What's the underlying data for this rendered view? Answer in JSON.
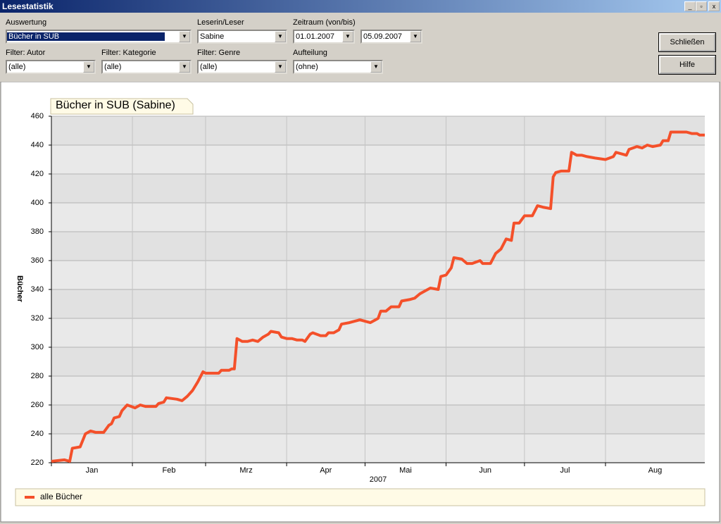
{
  "window": {
    "title": "Lesestatistik"
  },
  "form": {
    "auswertung": {
      "label": "Auswertung",
      "value": "Bücher in SUB"
    },
    "leser": {
      "label": "Leserin/Leser",
      "value": "Sabine"
    },
    "zeitraum": {
      "label": "Zeitraum (von/bis)",
      "from": "01.01.2007",
      "to": "05.09.2007"
    },
    "autor": {
      "label": "Filter: Autor",
      "value": "(alle)"
    },
    "kategorie": {
      "label": "Filter: Kategorie",
      "value": "(alle)"
    },
    "genre": {
      "label": "Filter: Genre",
      "value": "(alle)"
    },
    "aufteilung": {
      "label": "Aufteilung",
      "value": "(ohne)"
    }
  },
  "buttons": {
    "close": "Schließen",
    "help": "Hilfe"
  },
  "chart_data": {
    "type": "line",
    "title": "Bücher in SUB (Sabine)",
    "y_label": "Bücher",
    "x_label": "2007",
    "xlim": [
      0,
      250
    ],
    "xticks": [
      {
        "value": 0,
        "label": "Jan"
      },
      {
        "value": 31,
        "label": "Feb"
      },
      {
        "value": 59,
        "label": "Mrz"
      },
      {
        "value": 90,
        "label": "Apr"
      },
      {
        "value": 120,
        "label": "Mai"
      },
      {
        "value": 151,
        "label": "Jun"
      },
      {
        "value": 181,
        "label": "Jul"
      },
      {
        "value": 212,
        "label": "Aug"
      }
    ],
    "ylim": [
      220,
      460
    ],
    "yticks": [
      220,
      240,
      260,
      280,
      300,
      320,
      340,
      360,
      380,
      400,
      420,
      440,
      460
    ],
    "grid": true,
    "legend": "bottom",
    "x": [
      0,
      5,
      7,
      8,
      11,
      13,
      15,
      17,
      20,
      22,
      23,
      24,
      26,
      27,
      29,
      32,
      34,
      36,
      40,
      41,
      43,
      44,
      48,
      50,
      52,
      54,
      56,
      58,
      59,
      64,
      65,
      68,
      69,
      70,
      71,
      73,
      75,
      77,
      79,
      81,
      83,
      84,
      87,
      88,
      90,
      92,
      94,
      96,
      97,
      99,
      100,
      103,
      105,
      106,
      108,
      110,
      111,
      114,
      116,
      118,
      120,
      122,
      124,
      125,
      126,
      128,
      130,
      133,
      134,
      137,
      139,
      141,
      143,
      145,
      148,
      149,
      151,
      153,
      154,
      157,
      159,
      161,
      164,
      165,
      168,
      170,
      172,
      174,
      176,
      177,
      179,
      181,
      184,
      186,
      188,
      191,
      192,
      193,
      195,
      198,
      199,
      201,
      203,
      205,
      208,
      212,
      215,
      216,
      218,
      220,
      221,
      224,
      226,
      228,
      230,
      233,
      234,
      236,
      237,
      239,
      243,
      245,
      247,
      248,
      250
    ],
    "series": [
      {
        "name": "alle Bücher",
        "color": "#f4502a",
        "values": [
          221,
          222,
          221,
          230,
          231,
          240,
          242,
          241,
          241,
          246,
          247,
          251,
          252,
          256,
          260,
          258,
          260,
          259,
          259,
          261,
          262,
          265,
          264,
          263,
          266,
          270,
          276,
          283,
          282,
          282,
          284,
          284,
          285,
          285,
          306,
          304,
          304,
          305,
          304,
          307,
          309,
          311,
          310,
          307,
          306,
          306,
          305,
          305,
          304,
          309,
          310,
          308,
          308,
          310,
          310,
          312,
          316,
          317,
          318,
          319,
          318,
          317,
          319,
          320,
          325,
          325,
          328,
          328,
          332,
          333,
          334,
          337,
          339,
          341,
          340,
          349,
          350,
          355,
          362,
          361,
          358,
          358,
          360,
          358,
          358,
          365,
          368,
          375,
          374,
          386,
          386,
          391,
          391,
          398,
          397,
          396,
          418,
          421,
          422,
          422,
          435,
          433,
          433,
          432,
          431,
          430,
          432,
          435,
          434,
          433,
          437,
          439,
          438,
          440,
          439,
          440,
          443,
          443,
          449,
          449,
          449,
          448,
          448,
          447,
          447
        ]
      }
    ]
  }
}
